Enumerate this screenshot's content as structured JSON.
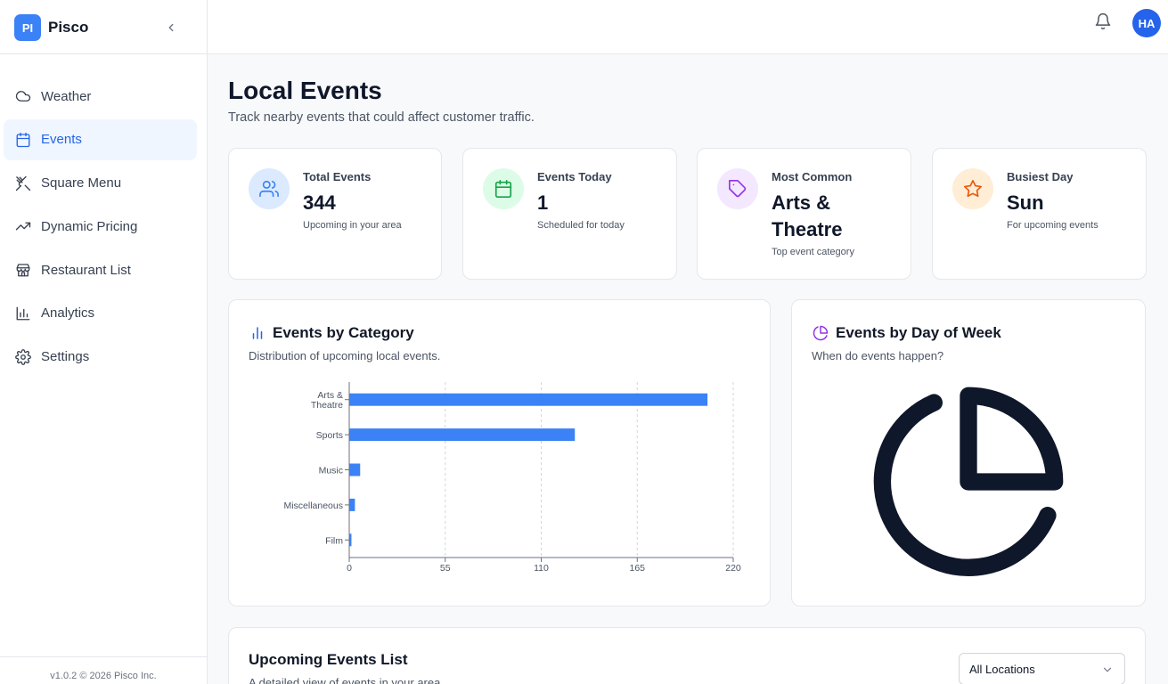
{
  "brand": {
    "logo_text": "PI",
    "name": "Pisco"
  },
  "sidebar": {
    "items": [
      {
        "label": "Weather",
        "icon": "cloud-icon",
        "active": false
      },
      {
        "label": "Events",
        "icon": "calendar-icon",
        "active": true
      },
      {
        "label": "Square Menu",
        "icon": "utensils-icon",
        "active": false
      },
      {
        "label": "Dynamic Pricing",
        "icon": "trending-up-icon",
        "active": false
      },
      {
        "label": "Restaurant List",
        "icon": "store-icon",
        "active": false
      },
      {
        "label": "Analytics",
        "icon": "bar-chart-icon",
        "active": false
      },
      {
        "label": "Settings",
        "icon": "gear-icon",
        "active": false
      }
    ],
    "version": "v1.0.2 © 2026 Pisco Inc."
  },
  "header": {
    "avatar_initials": "HA"
  },
  "page": {
    "title": "Local Events",
    "subtitle": "Track nearby events that could affect customer traffic."
  },
  "stats": [
    {
      "label": "Total Events",
      "value": "344",
      "note": "Upcoming in your area",
      "icon": "users-icon",
      "color": "#3b82f6",
      "bg": "#dbeafe"
    },
    {
      "label": "Events Today",
      "value": "1",
      "note": "Scheduled for today",
      "icon": "calendar-icon",
      "color": "#16a34a",
      "bg": "#dcfce7"
    },
    {
      "label": "Most Common",
      "value": "Arts & Theatre",
      "note": "Top event category",
      "icon": "tag-icon",
      "color": "#9333ea",
      "bg": "#f3e8ff"
    },
    {
      "label": "Busiest Day",
      "value": "Sun",
      "note": "For upcoming events",
      "icon": "star-icon",
      "color": "#ea580c",
      "bg": "#ffedd5"
    }
  ],
  "category_chart": {
    "title": "Events by Category",
    "subtitle": "Distribution of upcoming local events."
  },
  "day_chart": {
    "title": "Events by Day of Week",
    "subtitle": "When do events happen?"
  },
  "events_list": {
    "title": "Upcoming Events List",
    "subtitle": "A detailed view of events in your area.",
    "location_filter": "All Locations"
  },
  "chart_data": {
    "type": "bar",
    "orientation": "horizontal",
    "categories": [
      "Arts & Theatre",
      "Sports",
      "Music",
      "Miscellaneous",
      "Film"
    ],
    "category_label_lines": [
      [
        "Arts &",
        "Theatre"
      ],
      [
        "Sports"
      ],
      [
        "Music"
      ],
      [
        "Miscellaneous"
      ],
      [
        "Film"
      ]
    ],
    "values": [
      205,
      129,
      6,
      3,
      1
    ],
    "xlim": [
      0,
      220
    ],
    "xticks": [
      "0",
      "55",
      "110",
      "165",
      "220"
    ],
    "xtick_values": [
      0,
      55,
      110,
      165,
      220
    ],
    "grid": "vertical-dashed",
    "bar_color": "#3b82f6"
  }
}
